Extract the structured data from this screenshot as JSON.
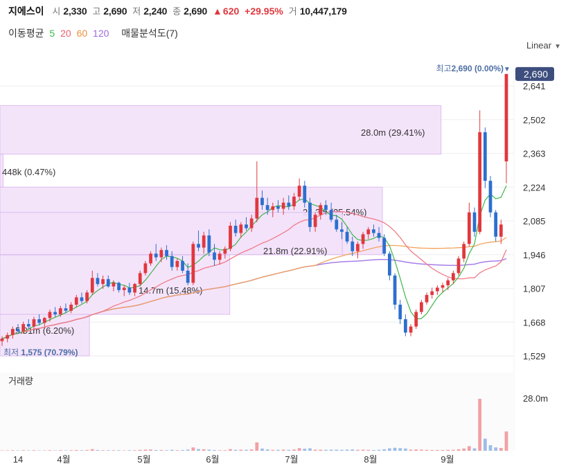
{
  "header": {
    "name": "지에스이",
    "open_label": "시",
    "open": "2,330",
    "high_label": "고",
    "high": "2,690",
    "low_label": "저",
    "low": "2,240",
    "close_label": "종",
    "close": "2,690",
    "change_arrow": "▲",
    "change": "620",
    "change_pct": "+29.95%",
    "volume_label": "거",
    "volume": "10,447,179"
  },
  "indicators": {
    "ma_label": "이동평균",
    "ma5": "5",
    "ma20": "20",
    "ma60": "60",
    "ma120": "120",
    "vp_label": "매물분석도(7)"
  },
  "scale_button": "Linear",
  "colors": {
    "up": "#e0383e",
    "down": "#2c6fce",
    "ma5": "#3fb64a",
    "ma20": "#f07b86",
    "ma60": "#f2a35c",
    "ma120": "#a77ee8",
    "profile": "#f3e2fa",
    "profile_border": "#d9b8ef"
  },
  "chart_data": {
    "type": "candlestick",
    "y_ticks": [
      "2,641",
      "2,502",
      "2,363",
      "2,224",
      "2,085",
      "1,946",
      "1,807",
      "1,668",
      "1,529"
    ],
    "x_ticks": [
      "14",
      "4월",
      "5월",
      "6월",
      "7월",
      "8월",
      "9월"
    ],
    "last_price": "2,690",
    "high_marker": {
      "prefix": "최고",
      "value": "2,690 (0.00%)",
      "arrow": "▼"
    },
    "low_marker": {
      "prefix": "최저",
      "value": "1,575 (70.79%)"
    },
    "ylim": [
      1529,
      2700
    ],
    "ohlc": [
      [
        1590,
        1610,
        1570,
        1600
      ],
      [
        1600,
        1625,
        1585,
        1615
      ],
      [
        1615,
        1650,
        1600,
        1640
      ],
      [
        1640,
        1660,
        1620,
        1630
      ],
      [
        1630,
        1670,
        1620,
        1660
      ],
      [
        1660,
        1680,
        1640,
        1650
      ],
      [
        1650,
        1690,
        1640,
        1680
      ],
      [
        1680,
        1700,
        1655,
        1665
      ],
      [
        1665,
        1690,
        1650,
        1685
      ],
      [
        1685,
        1720,
        1670,
        1710
      ],
      [
        1710,
        1730,
        1690,
        1700
      ],
      [
        1700,
        1735,
        1690,
        1725
      ],
      [
        1725,
        1745,
        1705,
        1715
      ],
      [
        1715,
        1750,
        1705,
        1740
      ],
      [
        1740,
        1780,
        1730,
        1770
      ],
      [
        1770,
        1790,
        1745,
        1755
      ],
      [
        1755,
        1800,
        1745,
        1790
      ],
      [
        1790,
        1880,
        1780,
        1850
      ],
      [
        1850,
        1870,
        1815,
        1825
      ],
      [
        1825,
        1860,
        1805,
        1845
      ],
      [
        1845,
        1860,
        1810,
        1815
      ],
      [
        1815,
        1840,
        1795,
        1830
      ],
      [
        1830,
        1835,
        1790,
        1800
      ],
      [
        1800,
        1820,
        1775,
        1810
      ],
      [
        1810,
        1830,
        1780,
        1790
      ],
      [
        1790,
        1830,
        1775,
        1825
      ],
      [
        1825,
        1880,
        1815,
        1870
      ],
      [
        1870,
        1920,
        1860,
        1910
      ],
      [
        1910,
        1960,
        1900,
        1950
      ],
      [
        1950,
        1990,
        1920,
        1935
      ],
      [
        1935,
        1975,
        1915,
        1965
      ],
      [
        1965,
        1985,
        1925,
        1940
      ],
      [
        1940,
        1960,
        1880,
        1895
      ],
      [
        1895,
        1930,
        1880,
        1920
      ],
      [
        1920,
        1940,
        1870,
        1880
      ],
      [
        1880,
        1910,
        1820,
        1830
      ],
      [
        1830,
        2000,
        1820,
        1990
      ],
      [
        1990,
        2045,
        1960,
        1975
      ],
      [
        1975,
        2040,
        1950,
        2025
      ],
      [
        2025,
        2050,
        1940,
        1955
      ],
      [
        1955,
        1990,
        1900,
        1925
      ],
      [
        1925,
        1960,
        1905,
        1950
      ],
      [
        1950,
        1980,
        1930,
        1970
      ],
      [
        1970,
        2080,
        1960,
        2065
      ],
      [
        2065,
        2090,
        2020,
        2035
      ],
      [
        2035,
        2080,
        2015,
        2070
      ],
      [
        2070,
        2100,
        2045,
        2055
      ],
      [
        2055,
        2110,
        2040,
        2095
      ],
      [
        2095,
        2330,
        2080,
        2180
      ],
      [
        2180,
        2210,
        2130,
        2150
      ],
      [
        2150,
        2180,
        2110,
        2130
      ],
      [
        2130,
        2160,
        2100,
        2145
      ],
      [
        2145,
        2170,
        2120,
        2135
      ],
      [
        2135,
        2180,
        2110,
        2160
      ],
      [
        2160,
        2190,
        2130,
        2145
      ],
      [
        2145,
        2200,
        2130,
        2185
      ],
      [
        2185,
        2260,
        2170,
        2230
      ],
      [
        2230,
        2250,
        2140,
        2160
      ],
      [
        2160,
        2180,
        2040,
        2060
      ],
      [
        2060,
        2120,
        2040,
        2110
      ],
      [
        2110,
        2160,
        2090,
        2150
      ],
      [
        2150,
        2170,
        2110,
        2130
      ],
      [
        2130,
        2160,
        2080,
        2090
      ],
      [
        2090,
        2110,
        2040,
        2050
      ],
      [
        2050,
        2080,
        2010,
        2040
      ],
      [
        2040,
        2060,
        1990,
        2000
      ],
      [
        2000,
        2020,
        1940,
        1960
      ],
      [
        1960,
        2000,
        1930,
        1990
      ],
      [
        1990,
        2040,
        1970,
        2030
      ],
      [
        2030,
        2060,
        2010,
        2050
      ],
      [
        2050,
        2070,
        2020,
        2035
      ],
      [
        2035,
        2060,
        2000,
        2015
      ],
      [
        2015,
        2030,
        1940,
        1950
      ],
      [
        1950,
        1960,
        1840,
        1860
      ],
      [
        1860,
        1870,
        1720,
        1740
      ],
      [
        1740,
        1760,
        1660,
        1680
      ],
      [
        1680,
        1700,
        1610,
        1625
      ],
      [
        1625,
        1660,
        1610,
        1650
      ],
      [
        1650,
        1720,
        1640,
        1710
      ],
      [
        1710,
        1760,
        1700,
        1750
      ],
      [
        1750,
        1790,
        1740,
        1780
      ],
      [
        1780,
        1810,
        1765,
        1795
      ],
      [
        1795,
        1820,
        1780,
        1810
      ],
      [
        1810,
        1830,
        1790,
        1820
      ],
      [
        1820,
        1850,
        1800,
        1840
      ],
      [
        1840,
        1880,
        1825,
        1870
      ],
      [
        1870,
        1940,
        1860,
        1930
      ],
      [
        1930,
        2000,
        1915,
        1990
      ],
      [
        1990,
        2160,
        1980,
        2120
      ],
      [
        2120,
        2140,
        2020,
        2040
      ],
      [
        2040,
        2540,
        2030,
        2450
      ],
      [
        2450,
        2470,
        2220,
        2250
      ],
      [
        2250,
        2270,
        2100,
        2120
      ],
      [
        2120,
        2130,
        2000,
        2020
      ],
      [
        2020,
        2090,
        1990,
        2070
      ],
      [
        2330,
        2690,
        2240,
        2690
      ]
    ],
    "volume_label": "거래량",
    "volume_tick": "28.0m",
    "volumes": [
      0.2,
      0.2,
      0.3,
      0.2,
      0.3,
      0.2,
      0.3,
      0.2,
      0.2,
      0.3,
      0.2,
      0.3,
      0.2,
      0.3,
      0.4,
      0.3,
      0.4,
      0.9,
      0.4,
      0.3,
      0.3,
      0.3,
      0.3,
      0.2,
      0.3,
      0.3,
      0.5,
      0.6,
      0.7,
      0.4,
      0.4,
      0.3,
      0.5,
      0.3,
      0.4,
      0.6,
      1.8,
      0.9,
      0.8,
      0.6,
      0.4,
      0.3,
      0.3,
      0.9,
      0.5,
      0.6,
      0.5,
      0.7,
      4.5,
      1.2,
      0.7,
      0.5,
      0.5,
      0.6,
      0.5,
      0.7,
      1.4,
      1.1,
      1.3,
      0.6,
      0.6,
      0.5,
      0.6,
      0.6,
      0.5,
      0.6,
      0.7,
      0.5,
      0.6,
      0.5,
      0.4,
      0.5,
      0.8,
      1.3,
      1.6,
      1.4,
      1.2,
      0.6,
      0.7,
      0.6,
      0.5,
      0.4,
      0.4,
      0.4,
      0.5,
      0.5,
      0.8,
      1.2,
      2.5,
      1.3,
      28.0,
      6.5,
      3.0,
      1.8,
      1.5,
      10.4
    ],
    "volume_profile": [
      {
        "label": "28.0m (29.41%)"
      },
      {
        "label": "448k (0.47%)"
      },
      {
        "label": "24.3m (25.54%)"
      },
      {
        "label": "21.8m (22.91%)"
      },
      {
        "label": "14.7m (15.48%)"
      },
      {
        "label": "5.91m (6.20%)"
      }
    ]
  }
}
